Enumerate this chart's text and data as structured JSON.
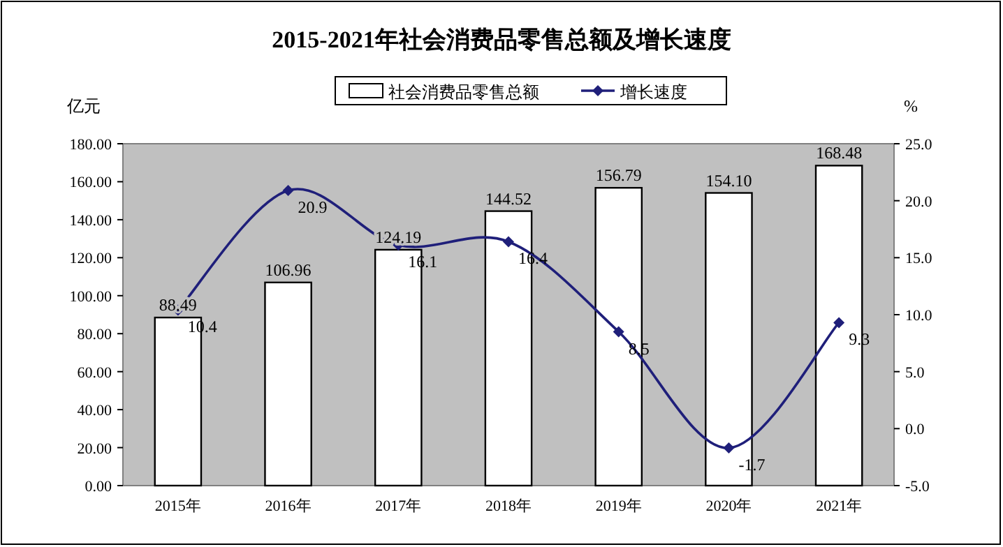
{
  "chart_data": {
    "type": "bar",
    "title": "2015-2021年社会消费品零售总额及增长速度",
    "categories": [
      "2015年",
      "2016年",
      "2017年",
      "2018年",
      "2019年",
      "2020年",
      "2021年"
    ],
    "series": [
      {
        "name": "社会消费品零售总额",
        "color": "#ffffff",
        "values": [
          88.49,
          106.96,
          124.19,
          144.52,
          156.79,
          154.1,
          168.48
        ],
        "value_labels": [
          "88.49",
          "106.96",
          "124.19",
          "144.52",
          "156.79",
          "154.10",
          "168.48"
        ]
      },
      {
        "name": "增长速度",
        "type": "line",
        "axis": "y2",
        "color": "#1f1f7a",
        "values": [
          10.4,
          20.9,
          16.1,
          16.4,
          8.5,
          -1.7,
          9.3
        ]
      }
    ],
    "ylabel": "亿元",
    "y2label": "%",
    "ylim": [
      0,
      180
    ],
    "yticks": [
      {
        "value": 0,
        "label": "0.00"
      },
      {
        "value": 20,
        "label": "20.00"
      },
      {
        "value": 40,
        "label": "40.00"
      },
      {
        "value": 60,
        "label": "60.00"
      },
      {
        "value": 80,
        "label": "80.00"
      },
      {
        "value": 100,
        "label": "100.00"
      },
      {
        "value": 120,
        "label": "120.00"
      },
      {
        "value": 140,
        "label": "140.00"
      },
      {
        "value": 160,
        "label": "160.00"
      },
      {
        "value": 180,
        "label": "180.00"
      }
    ],
    "y2lim": [
      -5,
      25
    ],
    "y2ticks": [
      {
        "value": -5,
        "label": "-5.0"
      },
      {
        "value": 0,
        "label": "0.0"
      },
      {
        "value": 5,
        "label": "5.0"
      },
      {
        "value": 10,
        "label": "10.0"
      },
      {
        "value": 15,
        "label": "15.0"
      },
      {
        "value": 20,
        "label": "20.0"
      },
      {
        "value": 25,
        "label": "25.0"
      }
    ],
    "data_labels": true,
    "legend": "top",
    "marker": "diamond"
  }
}
